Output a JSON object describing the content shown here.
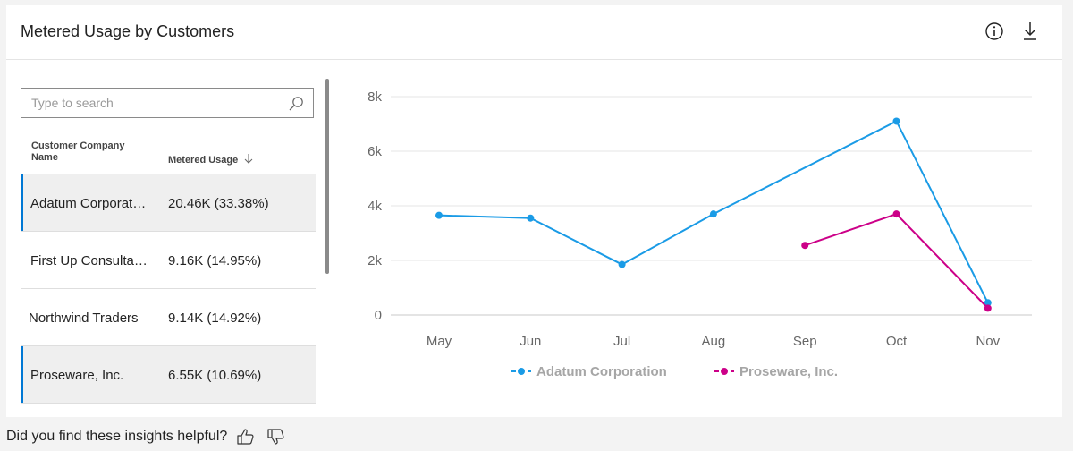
{
  "card": {
    "title": "Metered Usage by Customers",
    "icons": {
      "info": "info-icon",
      "download": "download-icon"
    }
  },
  "search": {
    "placeholder": "Type to search",
    "value": "",
    "icon": "search-icon"
  },
  "table": {
    "columns": [
      {
        "label": "Customer Company Name"
      },
      {
        "label": "Metered Usage",
        "sort": "descending",
        "sort_icon": "arrow-down-icon"
      }
    ],
    "rows": [
      {
        "name": "Adatum Corporation",
        "value": "20.46K (33.38%)",
        "selected": true
      },
      {
        "name": "First Up Consultants",
        "value": "9.16K (14.95%)",
        "selected": false
      },
      {
        "name": "Northwind Traders",
        "value": "9.14K (14.92%)",
        "selected": false
      },
      {
        "name": "Proseware, Inc.",
        "value": "6.55K (10.69%)",
        "selected": true
      }
    ]
  },
  "chart_data": {
    "type": "line",
    "title": "",
    "xlabel": "",
    "ylabel": "",
    "categories": [
      "May",
      "Jun",
      "Jul",
      "Aug",
      "Sep",
      "Oct",
      "Nov"
    ],
    "y_ticks": [
      "0",
      "2k",
      "4k",
      "6k",
      "8k"
    ],
    "ylim": [
      0,
      8000
    ],
    "grid": true,
    "legend_position": "bottom",
    "series": [
      {
        "name": "Adatum Corporation",
        "color": "#1a9be6",
        "values": [
          3650,
          3550,
          1850,
          3700,
          null,
          7100,
          450
        ]
      },
      {
        "name": "Proseware, Inc.",
        "color": "#cc0088",
        "values": [
          null,
          null,
          null,
          null,
          2550,
          3700,
          250
        ]
      }
    ]
  },
  "feedback": {
    "question": "Did you find these insights helpful?",
    "icons": {
      "up": "thumbs-up-icon",
      "down": "thumbs-down-icon"
    }
  }
}
